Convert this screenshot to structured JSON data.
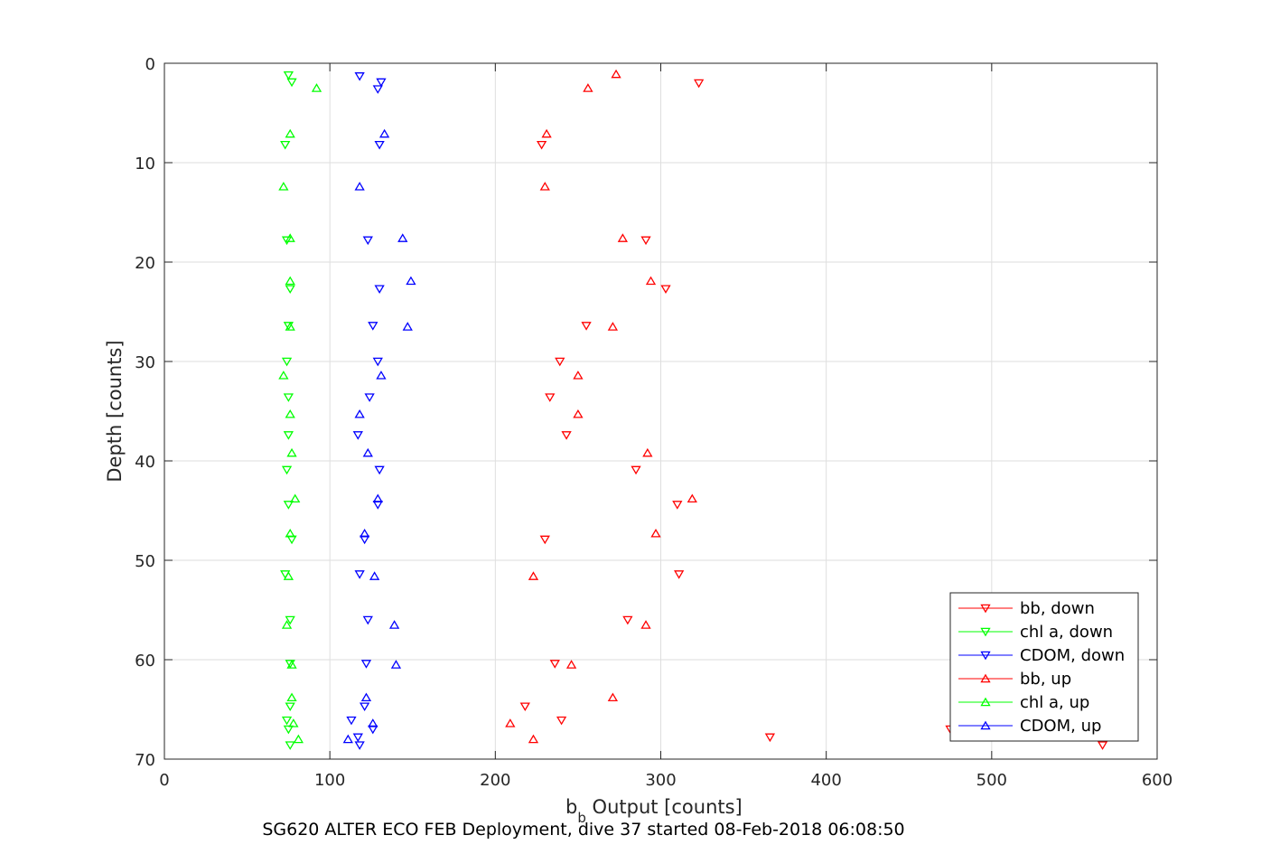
{
  "caption": "SG620 ALTER ECO FEB Deployment, dive 37 started 08-Feb-2018 06:08:50",
  "chart_data": {
    "type": "scatter",
    "title": "",
    "xlabel_main": "b",
    "xlabel_sub": "b",
    "xlabel_rest": " Output [counts]",
    "ylabel": "Depth [counts]",
    "xlim": [
      0,
      600
    ],
    "ylim": [
      0,
      70
    ],
    "y_reversed": true,
    "xticks": [
      0,
      100,
      200,
      300,
      400,
      500,
      600
    ],
    "yticks": [
      0,
      10,
      20,
      30,
      40,
      50,
      60,
      70
    ],
    "grid": true,
    "legend_position": "bottom-right",
    "series": [
      {
        "name": "bb, down",
        "color": "#ff0000",
        "marker": "triangle-down",
        "points": [
          [
            323,
            2.0
          ],
          [
            228,
            8.2
          ],
          [
            291,
            17.8
          ],
          [
            303,
            22.7
          ],
          [
            255,
            26.4
          ],
          [
            239,
            30.0
          ],
          [
            233,
            33.6
          ],
          [
            243,
            37.4
          ],
          [
            285,
            40.9
          ],
          [
            310,
            44.4
          ],
          [
            230,
            47.9
          ],
          [
            311,
            51.4
          ],
          [
            280,
            56.0
          ],
          [
            236,
            60.4
          ],
          [
            218,
            64.7
          ],
          [
            240,
            66.1
          ],
          [
            366,
            67.8
          ],
          [
            475,
            67.0
          ],
          [
            567,
            68.6
          ]
        ]
      },
      {
        "name": "chl a, down",
        "color": "#00ff00",
        "marker": "triangle-down",
        "points": [
          [
            75,
            1.2
          ],
          [
            77,
            1.9
          ],
          [
            73,
            8.2
          ],
          [
            74,
            17.8
          ],
          [
            76,
            22.7
          ],
          [
            75,
            26.4
          ],
          [
            74,
            30.0
          ],
          [
            75,
            33.6
          ],
          [
            75,
            37.4
          ],
          [
            74,
            40.9
          ],
          [
            75,
            44.4
          ],
          [
            77,
            47.9
          ],
          [
            73,
            51.4
          ],
          [
            76,
            56.0
          ],
          [
            76,
            60.4
          ],
          [
            76,
            64.7
          ],
          [
            74,
            66.1
          ],
          [
            75,
            67.0
          ],
          [
            76,
            68.6
          ]
        ]
      },
      {
        "name": "CDOM, down",
        "color": "#0000ff",
        "marker": "triangle-down",
        "points": [
          [
            118,
            1.3
          ],
          [
            131,
            1.9
          ],
          [
            129,
            2.6
          ],
          [
            130,
            8.2
          ],
          [
            123,
            17.8
          ],
          [
            130,
            22.7
          ],
          [
            126,
            26.4
          ],
          [
            129,
            30.0
          ],
          [
            124,
            33.6
          ],
          [
            117,
            37.4
          ],
          [
            130,
            40.9
          ],
          [
            129,
            44.4
          ],
          [
            121,
            47.9
          ],
          [
            118,
            51.4
          ],
          [
            123,
            56.0
          ],
          [
            122,
            60.4
          ],
          [
            121,
            64.7
          ],
          [
            113,
            66.1
          ],
          [
            126,
            67.0
          ],
          [
            117,
            67.8
          ],
          [
            118,
            68.6
          ]
        ]
      },
      {
        "name": "bb, up",
        "color": "#ff0000",
        "marker": "triangle-up",
        "points": [
          [
            273,
            1.1
          ],
          [
            256,
            2.5
          ],
          [
            231,
            7.1
          ],
          [
            230,
            12.4
          ],
          [
            277,
            17.6
          ],
          [
            294,
            21.9
          ],
          [
            271,
            26.5
          ],
          [
            250,
            31.4
          ],
          [
            250,
            35.3
          ],
          [
            292,
            39.2
          ],
          [
            319,
            43.8
          ],
          [
            297,
            47.3
          ],
          [
            223,
            51.6
          ],
          [
            291,
            56.5
          ],
          [
            246,
            60.5
          ],
          [
            271,
            63.8
          ],
          [
            209,
            66.4
          ],
          [
            223,
            68.0
          ]
        ]
      },
      {
        "name": "chl a, up",
        "color": "#00ff00",
        "marker": "triangle-up",
        "points": [
          [
            92,
            2.5
          ],
          [
            76,
            7.1
          ],
          [
            72,
            12.4
          ],
          [
            76,
            17.6
          ],
          [
            76,
            21.9
          ],
          [
            76,
            26.5
          ],
          [
            72,
            31.4
          ],
          [
            76,
            35.3
          ],
          [
            77,
            39.2
          ],
          [
            79,
            43.8
          ],
          [
            76,
            47.3
          ],
          [
            75,
            51.6
          ],
          [
            74,
            56.5
          ],
          [
            77,
            60.5
          ],
          [
            77,
            63.8
          ],
          [
            78,
            66.4
          ],
          [
            81,
            68.0
          ]
        ]
      },
      {
        "name": "CDOM, up",
        "color": "#0000ff",
        "marker": "triangle-up",
        "points": [
          [
            133,
            7.1
          ],
          [
            118,
            12.4
          ],
          [
            144,
            17.6
          ],
          [
            149,
            21.9
          ],
          [
            147,
            26.5
          ],
          [
            131,
            31.4
          ],
          [
            118,
            35.3
          ],
          [
            123,
            39.2
          ],
          [
            129,
            43.8
          ],
          [
            121,
            47.3
          ],
          [
            127,
            51.6
          ],
          [
            139,
            56.5
          ],
          [
            140,
            60.5
          ],
          [
            122,
            63.8
          ],
          [
            126,
            66.4
          ],
          [
            111,
            68.0
          ]
        ]
      }
    ]
  }
}
